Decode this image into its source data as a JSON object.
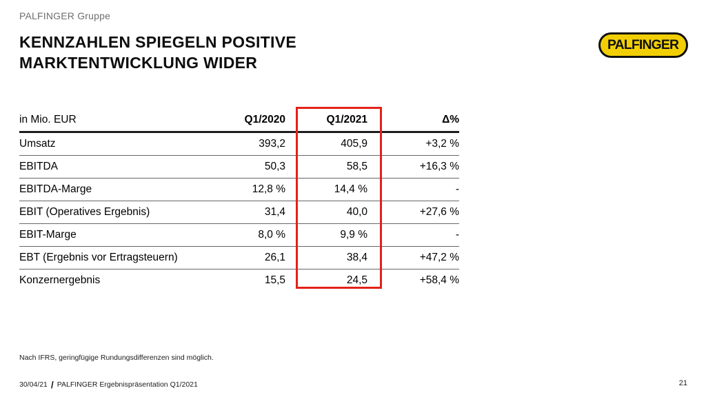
{
  "slide": {
    "eyebrow": "PALFINGER Gruppe",
    "title_line1": "KENNZAHLEN SPIEGELN POSITIVE",
    "title_line2": "MARKTENTWICKLUNG WIDER",
    "logo_text": "PALFINGER",
    "footnote": "Nach IFRS, geringfügige Rundungsdifferenzen sind möglich.",
    "footer_date": "30/04/21",
    "footer_separator": "/",
    "footer_text": "PALFINGER Ergebnispräsentation Q1/2021",
    "page_number": "21"
  },
  "table": {
    "unit_label": "in Mio. EUR",
    "columns": [
      "Q1/2020",
      "Q1/2021",
      "Δ%"
    ],
    "highlighted_column": "Q1/2021",
    "rows": [
      {
        "label": "Umsatz",
        "q1_2020": "393,2",
        "q1_2021": "405,9",
        "delta": "+3,2 %"
      },
      {
        "label": "EBITDA",
        "q1_2020": "50,3",
        "q1_2021": "58,5",
        "delta": "+16,3 %"
      },
      {
        "label": "EBITDA-Marge",
        "q1_2020": "12,8 %",
        "q1_2021": "14,4 %",
        "delta": "-"
      },
      {
        "label": "EBIT (Operatives Ergebnis)",
        "q1_2020": "31,4",
        "q1_2021": "40,0",
        "delta": "+27,6 %"
      },
      {
        "label": "EBIT-Marge",
        "q1_2020": "8,0 %",
        "q1_2021": "9,9 %",
        "delta": "-"
      },
      {
        "label": "EBT (Ergebnis vor Ertragsteuern)",
        "q1_2020": "26,1",
        "q1_2021": "38,4",
        "delta": "+47,2 %"
      },
      {
        "label": "Konzernergebnis",
        "q1_2020": "15,5",
        "q1_2021": "24,5",
        "delta": "+58,4 %"
      }
    ]
  },
  "colors": {
    "logo_yellow": "#F2CF05",
    "highlight_red": "#E32119",
    "eyebrow_gray": "#6E6E6E"
  }
}
